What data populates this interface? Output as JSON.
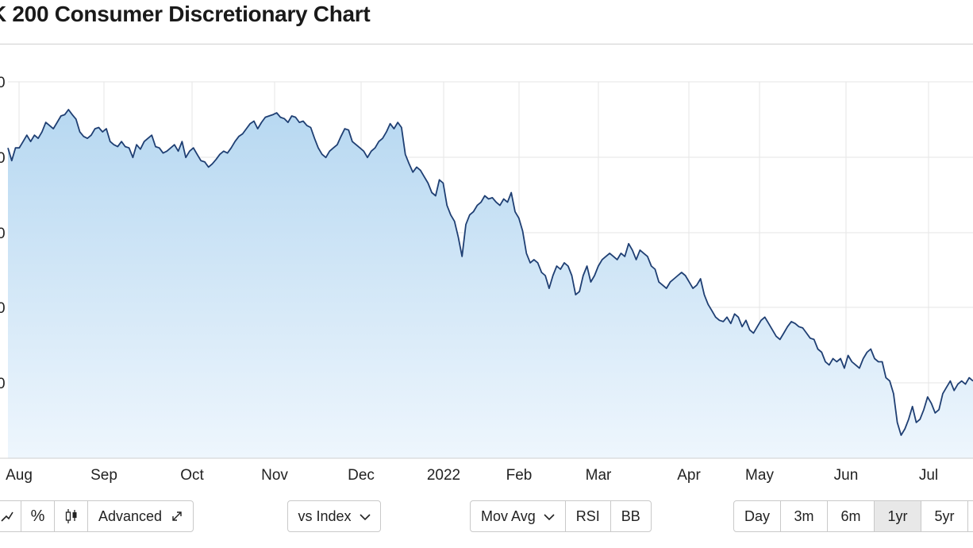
{
  "page": {
    "title": "K 200 Consumer Discretionary Chart"
  },
  "toolbar": {
    "view_group": {
      "line_icon": "line-chart-icon",
      "percent_label": "%",
      "candle_icon": "candlestick-icon",
      "advanced_label": "Advanced",
      "expand_icon": "expand-icon"
    },
    "compare": {
      "label": "vs Index",
      "icon": "chevron-down-icon"
    },
    "indicators": {
      "mov_avg_label": "Mov Avg",
      "rsi_label": "RSI",
      "bb_label": "BB"
    },
    "ranges": [
      "Day",
      "3m",
      "6m",
      "1yr",
      "5yr"
    ],
    "active_range": "1yr"
  },
  "colors": {
    "line": "#1f3f73",
    "fill_top": "#b7d8f1",
    "fill_bottom": "#eef6fd",
    "grid": "#e6e6e6"
  },
  "chart_data": {
    "type": "area",
    "title": "K 200 Consumer Discretionary Chart",
    "y_tick_labels": [
      "0",
      "0",
      "0",
      "0",
      "0"
    ],
    "x_tick_labels": [
      "Aug",
      "Sep",
      "Oct",
      "Nov",
      "Dec",
      "2022",
      "Feb",
      "Mar",
      "Apr",
      "May",
      "Jun",
      "Jul"
    ],
    "grid": true,
    "y_scale_note": "y tick labels are truncated at the left edge; only the trailing digit is visible",
    "series": [
      {
        "values": [
          2.1,
          1.9,
          2.1,
          2.1,
          2.2,
          2.3,
          2.2,
          2.3,
          2.25,
          2.35,
          2.5,
          2.45,
          2.4,
          2.5,
          2.6,
          2.62,
          2.7,
          2.62,
          2.55,
          2.35,
          2.28,
          2.25,
          2.3,
          2.4,
          2.42,
          2.35,
          2.4,
          2.2,
          2.15,
          2.12,
          2.2,
          2.12,
          2.1,
          1.95,
          2.15,
          2.08,
          2.2,
          2.25,
          2.3,
          2.12,
          2.1,
          2.02,
          2.05,
          2.1,
          2.15,
          2.05,
          2.2,
          1.95,
          2.05,
          2.1,
          2.0,
          1.9,
          1.88,
          1.8,
          1.85,
          1.92,
          2.0,
          2.05,
          2.02,
          2.1,
          2.2,
          2.28,
          2.32,
          2.4,
          2.48,
          2.52,
          2.4,
          2.5,
          2.58,
          2.6,
          2.62,
          2.65,
          2.58,
          2.56,
          2.5,
          2.6,
          2.58,
          2.5,
          2.52,
          2.45,
          2.42,
          2.25,
          2.1,
          2.0,
          1.95,
          2.05,
          2.1,
          2.15,
          2.28,
          2.4,
          2.38,
          2.2,
          2.15,
          2.1,
          2.05,
          1.95,
          2.05,
          2.1,
          2.2,
          2.25,
          2.35,
          2.48,
          2.4,
          2.5,
          2.42,
          2.0,
          1.85,
          1.72,
          1.8,
          1.75,
          1.65,
          1.55,
          1.4,
          1.35,
          1.6,
          1.55,
          1.2,
          1.05,
          0.95,
          0.7,
          0.4,
          0.9,
          1.05,
          1.1,
          1.2,
          1.25,
          1.35,
          1.3,
          1.32,
          1.25,
          1.2,
          1.3,
          1.25,
          1.4,
          1.1,
          1.0,
          0.8,
          0.45,
          0.3,
          0.35,
          0.3,
          0.15,
          0.1,
          -0.1,
          0.1,
          0.25,
          0.2,
          0.3,
          0.25,
          0.1,
          -0.2,
          -0.15,
          0.1,
          0.25,
          0.0,
          0.1,
          0.25,
          0.35,
          0.4,
          0.45,
          0.4,
          0.35,
          0.45,
          0.4,
          0.6,
          0.5,
          0.35,
          0.5,
          0.45,
          0.4,
          0.25,
          0.2,
          0.0,
          -0.05,
          -0.1,
          0.0,
          0.05,
          0.1,
          0.15,
          0.1,
          0.0,
          -0.1,
          -0.05,
          0.05,
          -0.2,
          -0.35,
          -0.45,
          -0.55,
          -0.6,
          -0.62,
          -0.55,
          -0.65,
          -0.5,
          -0.55,
          -0.7,
          -0.6,
          -0.75,
          -0.8,
          -0.7,
          -0.6,
          -0.55,
          -0.65,
          -0.75,
          -0.85,
          -0.9,
          -0.8,
          -0.7,
          -0.62,
          -0.65,
          -0.7,
          -0.72,
          -0.8,
          -0.88,
          -0.9,
          -1.05,
          -1.1,
          -1.25,
          -1.3,
          -1.2,
          -1.25,
          -1.2,
          -1.35,
          -1.15,
          -1.25,
          -1.3,
          -1.35,
          -1.2,
          -1.1,
          -1.05,
          -1.2,
          -1.25,
          -1.25,
          -1.5,
          -1.55,
          -1.75,
          -2.2,
          -2.4,
          -2.3,
          -2.15,
          -1.95,
          -2.2,
          -2.15,
          -2.0,
          -1.8,
          -1.9,
          -2.05,
          -2.0,
          -1.75,
          -1.65,
          -1.55,
          -1.7,
          -1.6,
          -1.55,
          -1.6,
          -1.5,
          -1.55
        ]
      }
    ]
  }
}
